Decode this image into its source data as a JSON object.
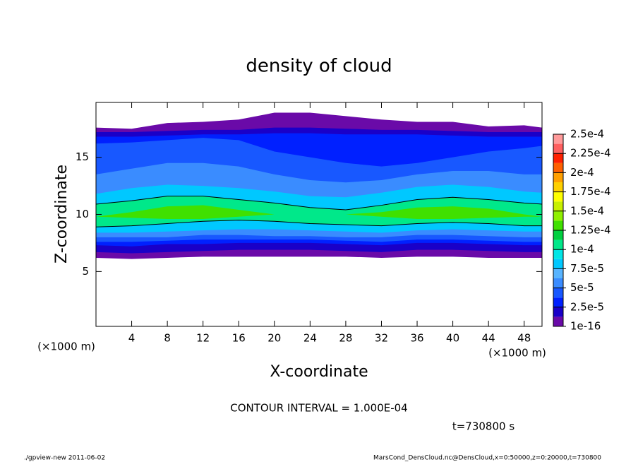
{
  "chart_data": {
    "type": "filled-contour",
    "title": "density of cloud",
    "x_label": "X-coordinate",
    "y_label": "Z-coordinate",
    "x_unit": "(×1000 m)",
    "y_unit": "(×1000 m)",
    "contour_note": "CONTOUR INTERVAL = 1.000E-04",
    "time_note": "t=730800 s",
    "footer_left": "./gpview-new  2011-06-02",
    "footer_right": "MarsCond_DensCloud.nc@DensCloud,x=0:50000,z=0:20000,t=730800",
    "xlim": [
      0,
      50
    ],
    "xticks": [
      4,
      8,
      12,
      16,
      20,
      24,
      28,
      32,
      36,
      40,
      44,
      48
    ],
    "ylim": [
      0.2,
      19.8
    ],
    "yticks": [
      5,
      10,
      15
    ],
    "x": [
      0,
      4,
      8,
      12,
      16,
      20,
      24,
      28,
      32,
      36,
      40,
      44,
      48,
      50
    ],
    "layers": [
      {
        "level": 1e-16,
        "bottom": [
          6.2,
          6.1,
          6.2,
          6.3,
          6.3,
          6.3,
          6.3,
          6.3,
          6.2,
          6.3,
          6.3,
          6.2,
          6.2,
          6.2
        ],
        "top": [
          17.6,
          17.5,
          18.0,
          18.1,
          18.3,
          18.9,
          18.9,
          18.6,
          18.3,
          18.1,
          18.1,
          17.7,
          17.8,
          17.6
        ]
      },
      {
        "level": 1.25e-05,
        "bottom": [
          6.7,
          6.6,
          6.7,
          6.8,
          6.9,
          6.9,
          6.9,
          6.8,
          6.7,
          6.9,
          6.9,
          6.8,
          6.7,
          6.7
        ],
        "top": [
          17.2,
          17.2,
          17.3,
          17.4,
          17.4,
          17.6,
          17.6,
          17.5,
          17.4,
          17.4,
          17.3,
          17.2,
          17.2,
          17.2
        ]
      },
      {
        "level": 2.5e-05,
        "bottom": [
          7.3,
          7.2,
          7.4,
          7.4,
          7.5,
          7.5,
          7.5,
          7.4,
          7.3,
          7.5,
          7.5,
          7.4,
          7.3,
          7.3
        ],
        "top": [
          16.8,
          16.8,
          16.9,
          17.0,
          17.0,
          17.1,
          17.1,
          17.0,
          17.0,
          17.0,
          16.9,
          16.8,
          16.8,
          16.8
        ]
      },
      {
        "level": 3.75e-05,
        "bottom": [
          7.6,
          7.6,
          7.7,
          7.8,
          7.8,
          7.8,
          7.8,
          7.7,
          7.6,
          7.8,
          7.8,
          7.7,
          7.6,
          7.6
        ],
        "top": [
          16.2,
          16.3,
          16.5,
          16.7,
          16.5,
          15.5,
          15.0,
          14.5,
          14.2,
          14.5,
          15.0,
          15.5,
          15.8,
          16.0
        ]
      },
      {
        "level": 5e-05,
        "bottom": [
          8.0,
          8.0,
          8.0,
          8.2,
          8.2,
          8.1,
          8.1,
          8.0,
          8.0,
          8.2,
          8.2,
          8.1,
          8.0,
          8.0
        ],
        "top": [
          13.5,
          14.0,
          14.5,
          14.5,
          14.2,
          13.5,
          13.0,
          12.8,
          13.0,
          13.5,
          13.8,
          13.8,
          13.5,
          13.5
        ]
      },
      {
        "level": 7.5e-05,
        "bottom": [
          8.4,
          8.4,
          8.5,
          8.6,
          8.7,
          8.7,
          8.6,
          8.5,
          8.4,
          8.6,
          8.7,
          8.6,
          8.5,
          8.5
        ],
        "top": [
          11.8,
          12.3,
          12.6,
          12.5,
          12.3,
          12.0,
          11.6,
          11.5,
          11.9,
          12.4,
          12.6,
          12.4,
          12.0,
          11.9
        ]
      },
      {
        "level": 0.0001,
        "bottom": [
          8.9,
          9.0,
          9.2,
          9.4,
          9.5,
          9.4,
          9.2,
          9.1,
          9.0,
          9.2,
          9.3,
          9.2,
          9.0,
          9.0
        ],
        "top": [
          10.9,
          11.2,
          11.6,
          11.6,
          11.3,
          11.0,
          10.6,
          10.4,
          10.8,
          11.3,
          11.5,
          11.3,
          11.0,
          10.9
        ]
      },
      {
        "level": 0.000125,
        "bottom": [
          9.8,
          9.7,
          9.6,
          9.6,
          9.8,
          10.0,
          10.0,
          10.0,
          9.8,
          9.6,
          9.6,
          9.7,
          9.8,
          9.8
        ],
        "top": [
          9.8,
          10.2,
          10.7,
          10.8,
          10.4,
          10.0,
          10.0,
          10.0,
          10.2,
          10.6,
          10.7,
          10.5,
          10.0,
          9.8
        ]
      }
    ],
    "contour_levels": [
      0.0001
    ],
    "colorbar": {
      "clim": [
        1e-16,
        0.00025
      ],
      "ticks": [
        1e-16,
        {
          "value": 2.5e-05,
          "label": "2.5e-5"
        },
        {
          "value": 5e-05,
          "label": "5e-5"
        },
        {
          "value": 7.5e-05,
          "label": "7.5e-5"
        },
        {
          "value": 0.0001,
          "label": "1e-4"
        },
        {
          "value": 0.000125,
          "label": "1.25e-4"
        },
        {
          "value": 0.00015,
          "label": "1.5e-4"
        },
        {
          "value": 0.000175,
          "label": "1.75e-4"
        },
        {
          "value": 0.0002,
          "label": "2e-4"
        },
        {
          "value": 0.000225,
          "label": "2.25e-4"
        },
        {
          "value": 0.00025,
          "label": "2.5e-4"
        }
      ],
      "colors": [
        "#6a0aa8",
        "#1a00c8",
        "#0020ff",
        "#1858ff",
        "#3a8cff",
        "#58b4ff",
        "#00c8ff",
        "#00e6e6",
        "#00e88a",
        "#00d040",
        "#40e000",
        "#90f000",
        "#c8f000",
        "#ffff00",
        "#ffd000",
        "#ffa000",
        "#ff6000",
        "#ff2000",
        "#ff6060",
        "#ff9a9a"
      ]
    }
  }
}
